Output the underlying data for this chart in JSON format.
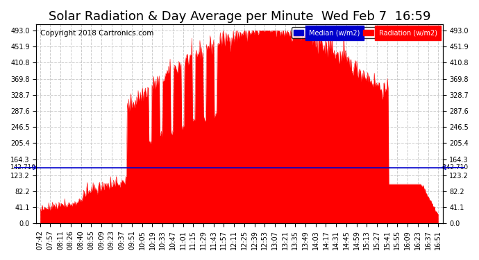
{
  "title": "Solar Radiation & Day Average per Minute  Wed Feb 7  16:59",
  "copyright": "Copyright 2018 Cartronics.com",
  "legend_median_label": "Median (w/m2)",
  "legend_radiation_label": "Radiation (w/m2)",
  "median_value": 142.71,
  "yticks": [
    0.0,
    41.1,
    82.2,
    123.2,
    164.3,
    205.4,
    246.5,
    287.6,
    328.7,
    369.8,
    410.8,
    451.9,
    493.0
  ],
  "ymax": 510,
  "ymin": 0,
  "bg_color": "#ffffff",
  "fill_color": "#ff0000",
  "median_color": "#0000cc",
  "grid_color": "#cccccc",
  "title_fontsize": 13,
  "copyright_fontsize": 7.5,
  "tick_fontsize": 7,
  "xtick_labels": [
    "07:42",
    "07:57",
    "08:11",
    "08:26",
    "08:40",
    "08:55",
    "09:09",
    "09:23",
    "09:37",
    "09:51",
    "10:05",
    "10:19",
    "10:33",
    "10:47",
    "11:01",
    "11:15",
    "11:29",
    "11:43",
    "11:57",
    "12:11",
    "12:25",
    "12:39",
    "12:53",
    "13:07",
    "13:21",
    "13:35",
    "13:49",
    "14:03",
    "14:17",
    "14:31",
    "14:45",
    "14:59",
    "15:13",
    "15:27",
    "15:41",
    "15:55",
    "16:09",
    "16:23",
    "16:37",
    "16:51"
  ]
}
